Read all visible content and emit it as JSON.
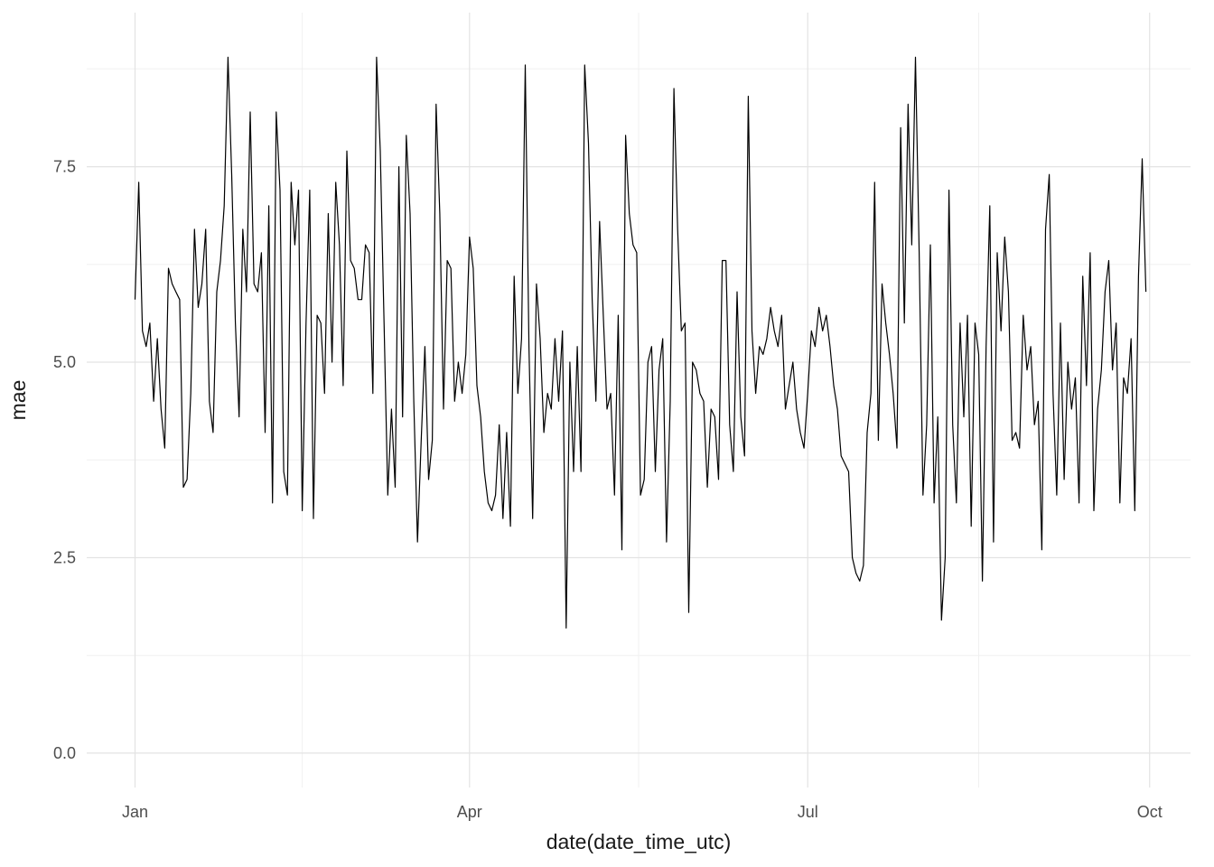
{
  "chart_data": {
    "type": "line",
    "title": "",
    "xlabel": "date(date_time_utc)",
    "ylabel": "mae",
    "x_tick_labels": [
      "Jan",
      "Apr",
      "Jul",
      "Oct"
    ],
    "x_tick_days": [
      0,
      90,
      181,
      273
    ],
    "x_minor_days": [
      45,
      135.5,
      227
    ],
    "y_tick_labels": [
      "0.0",
      "2.5",
      "5.0",
      "7.5"
    ],
    "y_tick_values": [
      0,
      2.5,
      5,
      7.5
    ],
    "y_minor_values": [
      1.25,
      3.75,
      6.25,
      8.75
    ],
    "xlim_days": [
      -13,
      284
    ],
    "ylim": [
      -0.44,
      9.47
    ],
    "x_unit": "day",
    "x_start_label": "Jan 1",
    "grid": true,
    "legend": false,
    "series": [
      {
        "name": "mae",
        "color": "#000000",
        "values": [
          5.8,
          7.3,
          5.4,
          5.2,
          5.5,
          4.5,
          5.3,
          4.4,
          3.9,
          6.2,
          6.0,
          5.9,
          5.8,
          3.4,
          3.5,
          4.6,
          6.7,
          5.7,
          6.0,
          6.7,
          4.5,
          4.1,
          5.9,
          6.3,
          7.0,
          8.9,
          7.4,
          5.5,
          4.3,
          6.7,
          5.9,
          8.2,
          6.0,
          5.9,
          6.4,
          4.1,
          7.0,
          3.2,
          8.2,
          7.2,
          3.6,
          3.3,
          7.3,
          6.5,
          7.2,
          3.1,
          5.5,
          7.2,
          3.0,
          5.6,
          5.5,
          4.6,
          6.9,
          5.0,
          7.3,
          6.5,
          4.7,
          7.7,
          6.3,
          6.2,
          5.8,
          5.8,
          6.5,
          6.4,
          4.6,
          8.9,
          7.7,
          5.5,
          3.3,
          4.4,
          3.4,
          7.5,
          4.3,
          7.9,
          6.9,
          4.5,
          2.7,
          4.0,
          5.2,
          3.5,
          4.0,
          8.3,
          6.9,
          4.4,
          6.3,
          6.2,
          4.5,
          5.0,
          4.6,
          5.1,
          6.6,
          6.2,
          4.7,
          4.3,
          3.6,
          3.2,
          3.1,
          3.3,
          4.2,
          3.0,
          4.1,
          2.9,
          6.1,
          4.6,
          5.3,
          8.8,
          5.2,
          3.0,
          6.0,
          5.3,
          4.1,
          4.6,
          4.4,
          5.3,
          4.5,
          5.4,
          1.6,
          5.0,
          3.6,
          5.2,
          3.6,
          8.8,
          7.8,
          5.8,
          4.5,
          6.8,
          5.6,
          4.4,
          4.6,
          3.3,
          5.6,
          2.6,
          7.9,
          6.9,
          6.5,
          6.4,
          3.3,
          3.5,
          5.0,
          5.2,
          3.6,
          4.9,
          5.3,
          2.7,
          4.5,
          8.5,
          6.7,
          5.4,
          5.5,
          1.8,
          5.0,
          4.9,
          4.6,
          4.5,
          3.4,
          4.4,
          4.3,
          3.5,
          6.3,
          6.3,
          4.2,
          3.6,
          5.9,
          4.3,
          3.8,
          8.4,
          5.4,
          4.6,
          5.2,
          5.1,
          5.3,
          5.7,
          5.4,
          5.2,
          5.6,
          4.4,
          4.7,
          5.0,
          4.4,
          4.1,
          3.9,
          4.6,
          5.4,
          5.2,
          5.7,
          5.4,
          5.6,
          5.2,
          4.7,
          4.4,
          3.8,
          3.7,
          3.6,
          2.5,
          2.3,
          2.2,
          2.4,
          4.1,
          4.6,
          7.3,
          4.0,
          6.0,
          5.5,
          5.1,
          4.6,
          3.9,
          8.0,
          5.5,
          8.3,
          6.5,
          8.9,
          6.4,
          3.3,
          4.2,
          6.5,
          3.2,
          4.3,
          1.7,
          2.5,
          7.2,
          4.2,
          3.2,
          5.5,
          4.3,
          5.6,
          2.9,
          5.5,
          5.1,
          2.2,
          5.2,
          7.0,
          2.7,
          6.4,
          5.4,
          6.6,
          5.9,
          4.0,
          4.1,
          3.9,
          5.6,
          4.9,
          5.2,
          4.2,
          4.5,
          2.6,
          6.7,
          7.4,
          4.6,
          3.3,
          5.5,
          3.5,
          5.0,
          4.4,
          4.8,
          3.2,
          6.1,
          4.7,
          6.4,
          3.1,
          4.4,
          4.9,
          5.9,
          6.3,
          4.9,
          5.5,
          3.2,
          4.8,
          4.6,
          5.3,
          3.1,
          6.1,
          7.6,
          5.9
        ]
      }
    ]
  },
  "colors": {
    "background": "#ffffff",
    "grid_major": "#e3e3e3",
    "grid_minor": "#f0f0f0",
    "tick_text": "#4d4d4d",
    "axis_title_text": "#1a1a1a",
    "line": "#000000"
  }
}
